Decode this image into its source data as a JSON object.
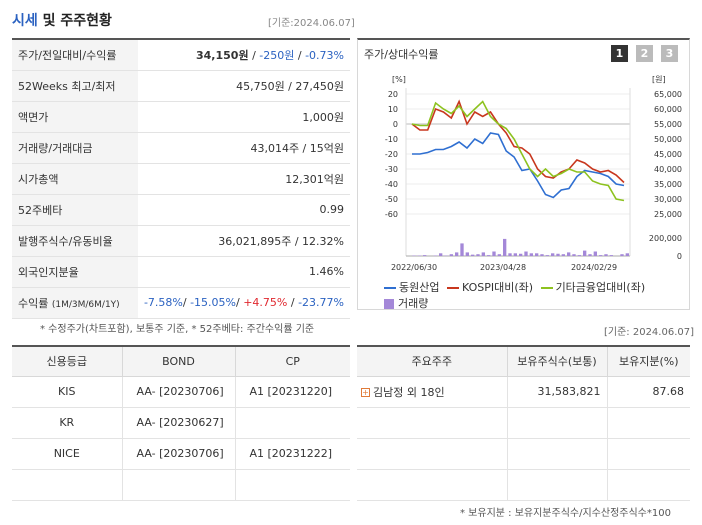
{
  "header": {
    "title_accent": "시세",
    "title_rest": " 및 주주현황",
    "date": "[기준:2024.06.07]"
  },
  "price_table": {
    "rows": [
      {
        "label": "주가/전일대비/수익률",
        "price": "34,150원",
        "change": "-250원",
        "rate": "-0.73%"
      },
      {
        "label": "52Weeks 최고/최저",
        "value": "45,750원 / 27,450원"
      },
      {
        "label": "액면가",
        "value": "1,000원"
      },
      {
        "label": "거래량/거래대금",
        "value": "43,014주 / 15억원"
      },
      {
        "label": "시가총액",
        "value": "12,301억원"
      },
      {
        "label": "52주베타",
        "value": "0.99"
      },
      {
        "label": "발행주식수/유동비율",
        "value": "36,021,895주 / 12.32%"
      },
      {
        "label": "외국인지분율",
        "value": "1.46%"
      },
      {
        "label": "수익률",
        "label_small": "(1M/3M/6M/1Y)",
        "r1": "-7.58%",
        "r2": "-15.05%",
        "r3": "+4.75%",
        "r4": "-23.77%"
      }
    ]
  },
  "foot_note": "* 수정주가(차트포함), 보통주 기준, * 52주베타: 주간수익률 기준",
  "chart_panel": {
    "title": "주가/상대수익률",
    "tabs": [
      "1",
      "2",
      "3"
    ]
  },
  "chart_data": {
    "type": "line",
    "left_axis": {
      "label": "[%]",
      "ticks": [
        20,
        10,
        0,
        -10,
        -20,
        -30,
        -40,
        -50,
        -60
      ],
      "range": [
        -60,
        20
      ]
    },
    "right_axis": {
      "label": "[원]",
      "ticks": [
        "65,000",
        "60,000",
        "55,000",
        "50,000",
        "45,000",
        "40,000",
        "35,000",
        "30,000",
        "25,000"
      ],
      "range": [
        25000,
        65000
      ]
    },
    "volume_axis": {
      "ticks": [
        "200,000",
        "0"
      ],
      "range": [
        0,
        200000
      ]
    },
    "x_ticks": [
      "2022/06/30",
      "2023/04/28",
      "2024/02/29"
    ],
    "series": [
      {
        "name": "동원산업",
        "color": "#2f6fd1",
        "values": [
          -20,
          -20,
          -19,
          -17,
          -17,
          -15,
          -12,
          -16,
          -10,
          -13,
          -6,
          -7,
          -18,
          -22,
          -31,
          -30,
          -38,
          -47,
          -49,
          -44,
          -43,
          -35,
          -31,
          -32,
          -33,
          -35,
          -40,
          -41
        ]
      },
      {
        "name": "KOSPI대비(좌)",
        "color": "#c8371e",
        "values": [
          0,
          -4,
          -4,
          10,
          8,
          4,
          15,
          0,
          8,
          5,
          8,
          0,
          -6,
          -15,
          -16,
          -20,
          -30,
          -35,
          -36,
          -32,
          -30,
          -24,
          -26,
          -30,
          -32,
          -31,
          -34,
          -39
        ]
      },
      {
        "name": "기타금융업대비(좌)",
        "color": "#8dc21f",
        "values": [
          0,
          -1,
          -1,
          14,
          10,
          7,
          12,
          5,
          10,
          15,
          5,
          0,
          -3,
          -10,
          -20,
          -30,
          -35,
          -30,
          -35,
          -33,
          -30,
          -32,
          -32,
          -38,
          -40,
          -41,
          -50,
          -51
        ]
      }
    ],
    "volume": {
      "name": "거래량",
      "color": "#a488d8",
      "values": [
        0,
        5000,
        5000,
        10000,
        0,
        5000,
        30000,
        5000,
        20000,
        40000,
        140000,
        40000,
        15000,
        20000,
        40000,
        10000,
        50000,
        20000,
        190000,
        30000,
        30000,
        25000,
        50000,
        30000,
        30000,
        20000,
        10000,
        30000,
        25000,
        20000,
        40000,
        20000,
        10000,
        60000,
        20000,
        50000,
        10000,
        20000,
        10000,
        0,
        20000,
        30000
      ]
    }
  },
  "right_date": "[기준: 2024.06.07]",
  "credit_table": {
    "headers": [
      "신용등급",
      "BOND",
      "CP"
    ],
    "rows": [
      {
        "agency": "KIS",
        "bond": "AA-  [20230706]",
        "cp": "A1  [20231220]"
      },
      {
        "agency": "KR",
        "bond": "AA-  [20230627]",
        "cp": ""
      },
      {
        "agency": "NICE",
        "bond": "AA-  [20230706]",
        "cp": "A1  [20231222]"
      },
      {
        "agency": "",
        "bond": "",
        "cp": ""
      }
    ]
  },
  "holder_table": {
    "headers": [
      "주요주주",
      "보유주식수(보통)",
      "보유지분(%)"
    ],
    "rows": [
      {
        "name": "김남정 외 18인",
        "shares": "31,583,821",
        "ratio": "87.68"
      }
    ]
  },
  "bottom_note": "* 보유지분 : 보유지분주식수/지수산정주식수*100"
}
